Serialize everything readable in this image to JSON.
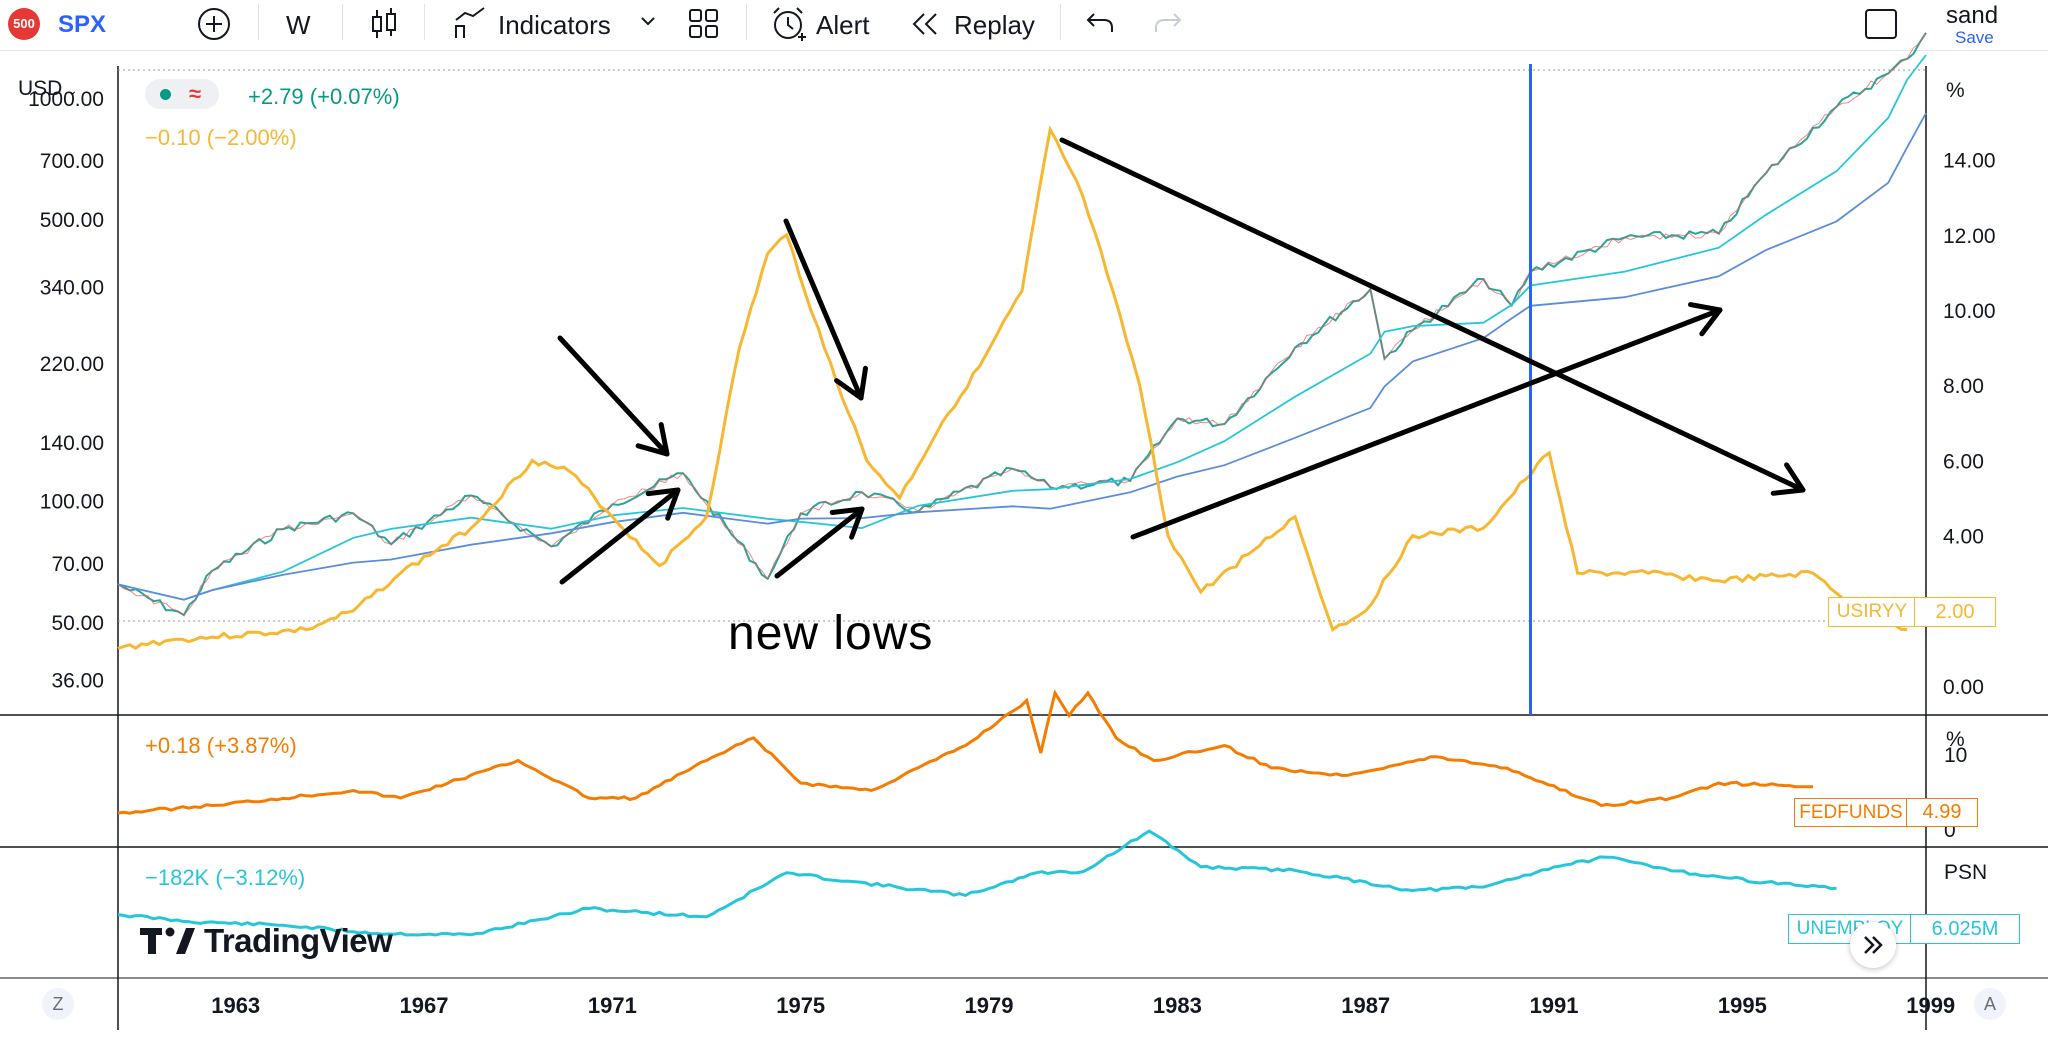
{
  "toolbar": {
    "symbol_badge": "500",
    "symbol": "SPX",
    "interval": "W",
    "indicators_label": "Indicators",
    "alert_label": "Alert",
    "replay_label": "Replay",
    "user_name": "sand",
    "save_label": "Save",
    "colors": {
      "badge": "#e53935",
      "symbol": "#2962ff",
      "save": "#2962ff"
    }
  },
  "main_pane": {
    "currency": "USD",
    "legend_change_1": "+2.79 (+0.07%)",
    "legend_change_2": "−0.10 (−2.00%)",
    "right_unit": "%",
    "tag_label": "USIRYY",
    "tag_value": "2.00",
    "annotation": "new lows",
    "colors": {
      "legend_1": "#089981",
      "legend_2": "#f7b731",
      "series": "#f7b731",
      "cursor": "#2962ff"
    }
  },
  "fed_pane": {
    "legend_change": "+0.18 (+3.87%)",
    "unit": "%",
    "tag_label": "FEDFUNDS",
    "tag_value": "4.99",
    "color": "#f57c00"
  },
  "unemp_pane": {
    "legend_change": "−182K (−3.12%)",
    "unit": "PSN",
    "partial_tick": "6M",
    "tag_label": "UNEMPLOY",
    "tag_value": "6.025M",
    "brand": "TradingView",
    "color": "#26c6da"
  },
  "footer": {
    "left_button": "Z",
    "right_button": "A"
  },
  "chart_data": [
    {
      "type": "line",
      "title": "SPX",
      "y_axis_left": {
        "scale": "log",
        "ticks": [
          "1000.00",
          "700.00",
          "500.00",
          "340.00",
          "220.00",
          "140.00",
          "100.00",
          "70.00",
          "50.00",
          "36.00"
        ]
      },
      "y_axis_right": {
        "unit": "%",
        "ticks": [
          "14.00",
          "12.00",
          "10.00",
          "8.00",
          "6.00",
          "4.00",
          "2.00",
          "0.00"
        ]
      },
      "x_ticks": [
        "1963",
        "1967",
        "1971",
        "1975",
        "1979",
        "1983",
        "1987",
        "1991",
        "1995",
        "1999"
      ],
      "series": [
        {
          "name": "SPX",
          "x": [
            1961.0,
            1962.4,
            1963.0,
            1964.5,
            1966.0,
            1966.8,
            1968.5,
            1970.2,
            1971.5,
            1973.0,
            1974.8,
            1975.5,
            1976.8,
            1978.0,
            1980.0,
            1980.8,
            1982.5,
            1983.5,
            1984.5,
            1986.0,
            1987.6,
            1987.9,
            1988.5,
            1990.0,
            1990.6,
            1991.0,
            1993.0,
            1995.0,
            1996.0,
            1997.5,
            1998.6,
            1999.0,
            1999.4
          ],
          "values": [
            62,
            52,
            67,
            85,
            93,
            78,
            103,
            77,
            98,
            117,
            64,
            93,
            105,
            94,
            120,
            108,
            112,
            160,
            155,
            240,
            335,
            225,
            265,
            355,
            305,
            370,
            450,
            460,
            650,
            950,
            1150,
            1250,
            1450
          ]
        },
        {
          "name": "USIRYY",
          "x": [
            1961.0,
            1962.0,
            1963.0,
            1965.0,
            1966.0,
            1967.0,
            1968.5,
            1969.8,
            1970.6,
            1971.5,
            1972.5,
            1973.5,
            1974.2,
            1974.8,
            1975.2,
            1976.0,
            1976.9,
            1977.6,
            1978.5,
            1979.3,
            1980.2,
            1980.8,
            1981.5,
            1982.0,
            1982.7,
            1983.3,
            1984.0,
            1985.0,
            1986.0,
            1986.8,
            1987.5,
            1988.5,
            1990.0,
            1990.9,
            1991.4,
            1992.0,
            1993.5,
            1995.0,
            1997.0,
            1998.0,
            1999.0
          ],
          "values": [
            1.0,
            1.2,
            1.3,
            1.5,
            2.0,
            3.0,
            4.2,
            6.0,
            5.7,
            4.5,
            3.2,
            4.5,
            9.0,
            11.5,
            12.0,
            9.0,
            6.0,
            5.0,
            7.0,
            8.5,
            10.5,
            14.8,
            13.0,
            11.0,
            8.0,
            4.0,
            2.5,
            3.5,
            4.5,
            1.5,
            2.0,
            4.0,
            4.2,
            5.5,
            6.2,
            3.0,
            3.0,
            2.8,
            3.0,
            2.0,
            1.5
          ],
          "color": "#f7b731"
        }
      ]
    },
    {
      "type": "line",
      "title": "FEDFUNDS",
      "y_axis_right": {
        "unit": "%",
        "ticks": [
          "10",
          "0"
        ]
      },
      "series": [
        {
          "name": "FEDFUNDS",
          "x": [
            1961.0,
            1963.0,
            1966.0,
            1967.0,
            1969.5,
            1971.0,
            1972.0,
            1973.5,
            1974.5,
            1975.5,
            1977.0,
            1979.0,
            1980.3,
            1980.6,
            1980.9,
            1981.2,
            1981.6,
            1982.2,
            1983.0,
            1984.5,
            1985.5,
            1987.0,
            1989.0,
            1990.5,
            1992.5,
            1994.0,
            1995.0,
            1997.0
          ],
          "values": [
            2.0,
            3.0,
            5.0,
            4.0,
            9.0,
            4.0,
            4.0,
            9.0,
            12.0,
            6.0,
            5.0,
            11.0,
            17.0,
            10.0,
            18.0,
            15.0,
            18.0,
            12.0,
            9.0,
            11.0,
            8.0,
            7.0,
            9.5,
            8.0,
            3.0,
            4.0,
            6.0,
            5.5
          ],
          "color": "#f57c00"
        }
      ]
    },
    {
      "type": "line",
      "title": "UNEMPLOY",
      "y_axis_right": {
        "unit": "PSN"
      },
      "series": [
        {
          "name": "UNEMPLOY",
          "x": [
            1961.0,
            1962.5,
            1964.5,
            1966.5,
            1968.5,
            1970.0,
            1971.0,
            1973.5,
            1975.2,
            1976.5,
            1979.0,
            1980.5,
            1981.5,
            1982.9,
            1984.0,
            1986.0,
            1988.5,
            1990.0,
            1991.5,
            1992.6,
            1994.5,
            1996.0,
            1997.5
          ],
          "values": [
            4.5,
            3.9,
            3.6,
            2.9,
            2.8,
            4.1,
            5.0,
            4.3,
            8.0,
            7.3,
            6.1,
            8.0,
            8.1,
            11.5,
            8.5,
            8.2,
            6.5,
            6.8,
            8.5,
            9.3,
            7.9,
            7.2,
            6.7
          ],
          "color": "#26c6da"
        }
      ]
    }
  ]
}
